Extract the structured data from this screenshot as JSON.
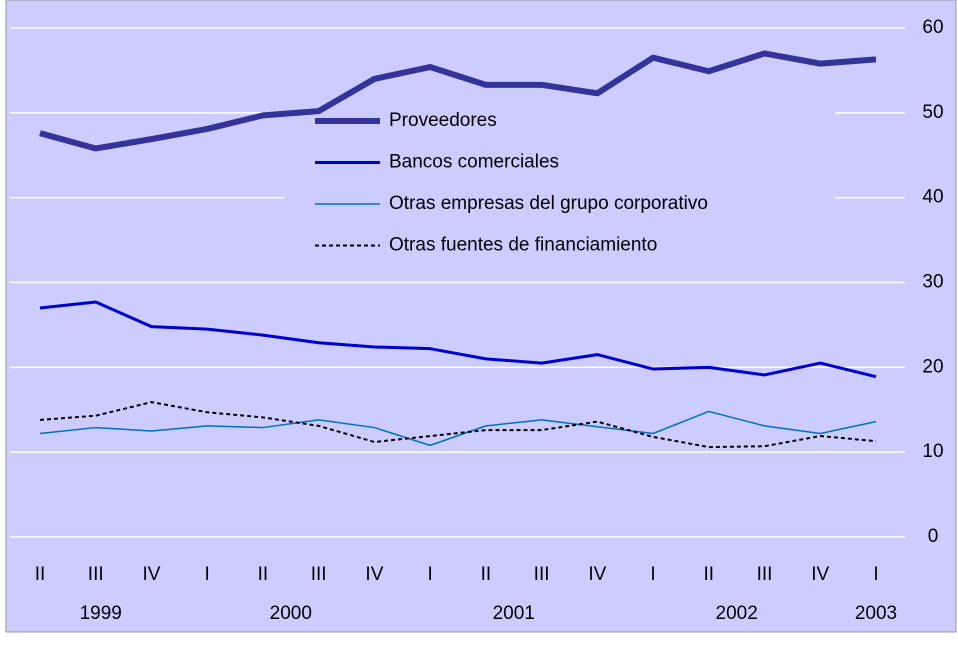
{
  "chart_data": {
    "type": "line",
    "categories": [
      "II",
      "III",
      "IV",
      "I",
      "II",
      "III",
      "IV",
      "I",
      "II",
      "III",
      "IV",
      "I",
      "II",
      "III",
      "IV",
      "I"
    ],
    "years": [
      "1999",
      "2000",
      "2001",
      "2002",
      "2003"
    ],
    "series": [
      {
        "name": "Proveedores",
        "color": "#333399",
        "line_width": 6,
        "dash": false,
        "values": [
          47.6,
          45.8,
          46.9,
          48.1,
          49.7,
          50.2,
          54.0,
          55.4,
          53.3,
          53.3,
          52.3,
          56.5,
          54.9,
          57.0,
          55.8,
          56.3
        ]
      },
      {
        "name": "Bancos comerciales",
        "color": "#0000cc",
        "line_width": 3,
        "dash": false,
        "values": [
          27.0,
          27.7,
          24.8,
          24.5,
          23.8,
          22.9,
          22.4,
          22.2,
          21.0,
          20.5,
          21.5,
          19.8,
          20.0,
          19.1,
          20.5,
          18.9
        ]
      },
      {
        "name": "Otras empresas del grupo corporativo",
        "color": "#0070c0",
        "line_width": 1.5,
        "dash": false,
        "values": [
          12.2,
          12.9,
          12.5,
          13.1,
          12.9,
          13.8,
          12.9,
          10.8,
          13.1,
          13.8,
          13.0,
          12.2,
          14.8,
          13.1,
          12.2,
          13.6
        ]
      },
      {
        "name": "Otras fuentes de financiamiento",
        "color": "#000000",
        "line_width": 2,
        "dash": true,
        "values": [
          13.8,
          14.3,
          15.9,
          14.7,
          14.1,
          13.1,
          11.2,
          11.9,
          12.6,
          12.6,
          13.6,
          11.8,
          10.6,
          10.7,
          11.9,
          11.3
        ]
      }
    ],
    "ylim": [
      0,
      60
    ],
    "yticks": [
      0,
      10,
      20,
      30,
      40,
      50,
      60
    ],
    "grid": true,
    "legend_position": "center",
    "background": "#ccccff"
  }
}
